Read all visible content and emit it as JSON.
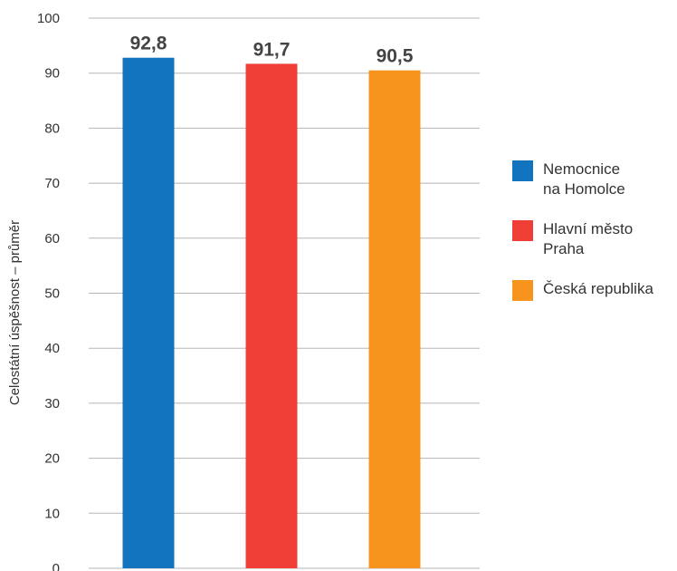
{
  "chart_data": {
    "type": "bar",
    "categories": [
      "Nemocnice na Homolce",
      "Hlavní město Praha",
      "Česká republika"
    ],
    "values": [
      92.8,
      91.7,
      90.5
    ],
    "value_labels": [
      "92,8",
      "91,7",
      "90,5"
    ],
    "colors": [
      "#1273bf",
      "#ef3e36",
      "#f7941d"
    ],
    "ylabel": "Celostátní úspěšnost – průměr",
    "xlabel": "",
    "ylim": [
      0,
      100
    ],
    "yticks": [
      0,
      10,
      20,
      30,
      40,
      50,
      60,
      70,
      80,
      90,
      100
    ],
    "grid": true,
    "legend_position": "right"
  },
  "legend": {
    "items": [
      {
        "line1": "Nemocnice",
        "line2": "na Homolce",
        "color": "#1273bf"
      },
      {
        "line1": "Hlavní město",
        "line2": "Praha",
        "color": "#ef3e36"
      },
      {
        "line1": "Česká republika",
        "line2": "",
        "color": "#f7941d"
      }
    ]
  }
}
